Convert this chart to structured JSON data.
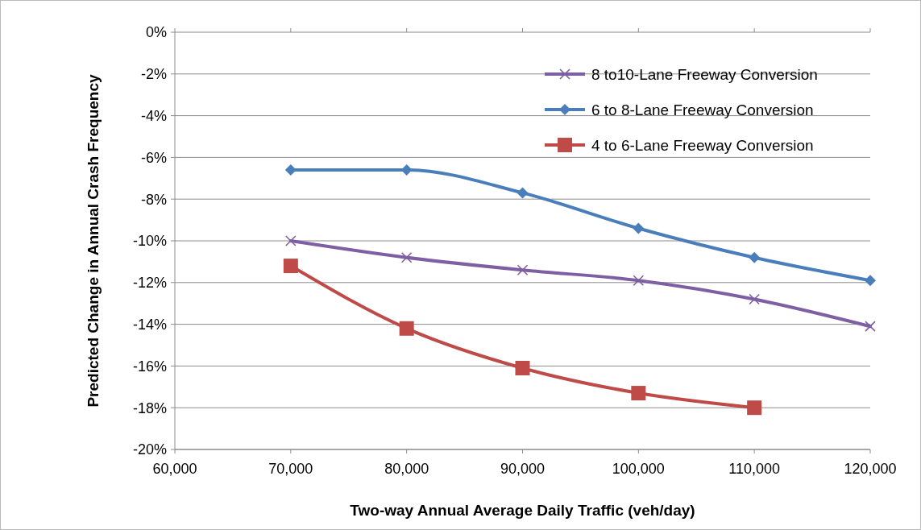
{
  "chart_data": {
    "type": "line",
    "xlabel": "Two-way Annual Average Daily Traffic (veh/day)",
    "ylabel": "Predicted Change in Annual Crash Frequency",
    "x": [
      70000,
      80000,
      90000,
      100000,
      110000,
      120000
    ],
    "series": [
      {
        "name": "8 to10-Lane Freeway Conversion",
        "color": "#7e5fa3",
        "marker": "cross",
        "values": [
          -10.0,
          -10.8,
          -11.4,
          -11.9,
          -12.8,
          -14.1
        ]
      },
      {
        "name": "6 to 8-Lane Freeway Conversion",
        "color": "#4a7ebb",
        "marker": "diamond",
        "values": [
          -6.6,
          -6.6,
          -7.7,
          -9.4,
          -10.8,
          -11.9
        ]
      },
      {
        "name": "4 to 6-Lane Freeway Conversion",
        "color": "#be4b48",
        "marker": "square",
        "values": [
          -11.2,
          -14.2,
          -16.1,
          -17.3,
          -18.0,
          null
        ]
      }
    ],
    "xlim": [
      60000,
      120000
    ],
    "xticks": [
      {
        "value": 60000,
        "label": "60,000"
      },
      {
        "value": 70000,
        "label": "70,000"
      },
      {
        "value": 80000,
        "label": "80,000"
      },
      {
        "value": 90000,
        "label": "90,000"
      },
      {
        "value": 100000,
        "label": "100,000"
      },
      {
        "value": 110000,
        "label": "110,000"
      },
      {
        "value": 120000,
        "label": "120,000"
      }
    ],
    "ylim": [
      -20,
      0
    ],
    "yticks": [
      {
        "value": 0,
        "label": "0%"
      },
      {
        "value": -2,
        "label": "-2%"
      },
      {
        "value": -4,
        "label": "-4%"
      },
      {
        "value": -6,
        "label": "-6%"
      },
      {
        "value": -8,
        "label": "-8%"
      },
      {
        "value": -10,
        "label": "-10%"
      },
      {
        "value": -12,
        "label": "-12%"
      },
      {
        "value": -14,
        "label": "-14%"
      },
      {
        "value": -16,
        "label": "-16%"
      },
      {
        "value": -18,
        "label": "-18%"
      },
      {
        "value": -20,
        "label": "-20%"
      }
    ],
    "grid": "y",
    "legend": "top right",
    "line_style": "solid"
  }
}
